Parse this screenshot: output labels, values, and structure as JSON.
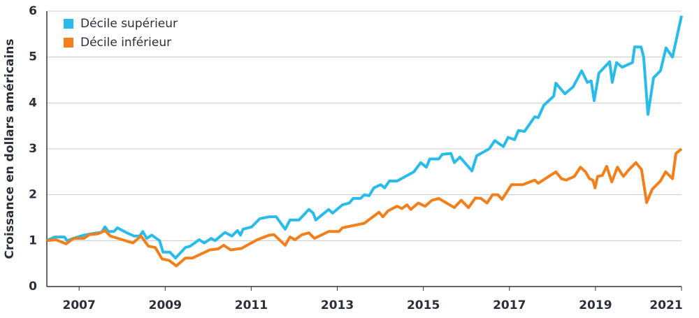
{
  "chart_data": {
    "type": "line",
    "y_label": "Croissance en dollars américains",
    "xlim": [
      2006.25,
      2021
    ],
    "xticks": [
      2007,
      2009,
      2011,
      2013,
      2015,
      2017,
      2019,
      2021
    ],
    "ylim": [
      0,
      6
    ],
    "yticks": [
      0,
      1,
      2,
      3,
      4,
      5,
      6
    ],
    "grid": true,
    "legend": "top-left",
    "series": [
      {
        "name": "Décile supérieur",
        "color": "#2bbbe9",
        "x": [
          2006.25,
          2006.43,
          2006.66,
          2006.72,
          2006.87,
          2007.11,
          2007.35,
          2007.52,
          2007.6,
          2007.68,
          2007.81,
          2007.89,
          2008.09,
          2008.28,
          2008.41,
          2008.48,
          2008.57,
          2008.69,
          2008.87,
          2008.95,
          2009.11,
          2009.24,
          2009.47,
          2009.58,
          2009.79,
          2009.91,
          2010.07,
          2010.16,
          2010.39,
          2010.55,
          2010.68,
          2010.75,
          2010.81,
          2011.01,
          2011.2,
          2011.42,
          2011.58,
          2011.79,
          2011.9,
          2012.11,
          2012.34,
          2012.44,
          2012.5,
          2012.8,
          2012.89,
          2013.12,
          2013.28,
          2013.37,
          2013.54,
          2013.63,
          2013.74,
          2013.85,
          2014.01,
          2014.1,
          2014.21,
          2014.39,
          2014.78,
          2014.94,
          2015.07,
          2015.15,
          2015.36,
          2015.44,
          2015.64,
          2015.72,
          2015.85,
          2016.13,
          2016.24,
          2016.53,
          2016.66,
          2016.86,
          2016.97,
          2017.12,
          2017.21,
          2017.35,
          2017.59,
          2017.67,
          2017.8,
          2018.03,
          2018.08,
          2018.29,
          2018.48,
          2018.68,
          2018.81,
          2018.9,
          2018.97,
          2019.08,
          2019.33,
          2019.39,
          2019.49,
          2019.62,
          2019.86,
          2019.91,
          2020.06,
          2020.12,
          2020.22,
          2020.35,
          2020.51,
          2020.64,
          2020.79,
          2021.0
        ],
        "values": [
          1.0,
          1.08,
          1.08,
          1.0,
          1.05,
          1.12,
          1.16,
          1.18,
          1.3,
          1.2,
          1.2,
          1.28,
          1.18,
          1.1,
          1.1,
          1.2,
          1.05,
          1.12,
          1.0,
          0.75,
          0.75,
          0.62,
          0.85,
          0.88,
          1.02,
          0.95,
          1.05,
          1.0,
          1.18,
          1.1,
          1.22,
          1.12,
          1.25,
          1.3,
          1.48,
          1.52,
          1.52,
          1.25,
          1.45,
          1.45,
          1.68,
          1.6,
          1.45,
          1.68,
          1.6,
          1.78,
          1.82,
          1.92,
          1.92,
          2.0,
          1.98,
          2.15,
          2.22,
          2.15,
          2.3,
          2.3,
          2.5,
          2.7,
          2.6,
          2.78,
          2.78,
          2.88,
          2.9,
          2.7,
          2.82,
          2.52,
          2.85,
          3.0,
          3.18,
          3.05,
          3.25,
          3.2,
          3.4,
          3.38,
          3.7,
          3.68,
          3.95,
          4.15,
          4.43,
          4.2,
          4.35,
          4.7,
          4.45,
          4.48,
          4.05,
          4.65,
          4.9,
          4.45,
          4.88,
          4.78,
          4.88,
          5.22,
          5.22,
          5.0,
          3.75,
          4.55,
          4.7,
          5.2,
          5.0,
          5.9
        ]
      },
      {
        "name": "Décile inférieur",
        "color": "#f07f1c",
        "x": [
          2006.25,
          2006.46,
          2006.7,
          2006.87,
          2007.11,
          2007.24,
          2007.44,
          2007.6,
          2007.73,
          2008.25,
          2008.44,
          2008.61,
          2008.77,
          2008.93,
          2009.09,
          2009.26,
          2009.47,
          2009.63,
          2010.04,
          2010.23,
          2010.36,
          2010.52,
          2010.77,
          2011.14,
          2011.42,
          2011.53,
          2011.79,
          2011.9,
          2012.02,
          2012.18,
          2012.34,
          2012.47,
          2012.8,
          2013.04,
          2013.12,
          2013.63,
          2013.97,
          2014.06,
          2014.18,
          2014.39,
          2014.5,
          2014.62,
          2014.71,
          2014.88,
          2015.04,
          2015.2,
          2015.36,
          2015.72,
          2015.88,
          2016.05,
          2016.21,
          2016.34,
          2016.48,
          2016.61,
          2016.73,
          2016.83,
          2017.05,
          2017.31,
          2017.59,
          2017.67,
          2018.0,
          2018.08,
          2018.21,
          2018.32,
          2018.51,
          2018.65,
          2018.77,
          2018.86,
          2018.94,
          2018.99,
          2019.05,
          2019.16,
          2019.26,
          2019.38,
          2019.51,
          2019.65,
          2019.78,
          2019.94,
          2020.07,
          2020.19,
          2020.32,
          2020.51,
          2020.63,
          2020.79,
          2020.87,
          2021.0
        ],
        "values": [
          1.0,
          1.02,
          0.93,
          1.05,
          1.05,
          1.13,
          1.15,
          1.22,
          1.1,
          0.95,
          1.1,
          0.88,
          0.85,
          0.6,
          0.57,
          0.45,
          0.62,
          0.62,
          0.8,
          0.82,
          0.9,
          0.8,
          0.83,
          1.02,
          1.12,
          1.13,
          0.9,
          1.08,
          1.02,
          1.13,
          1.17,
          1.05,
          1.2,
          1.2,
          1.28,
          1.38,
          1.62,
          1.52,
          1.65,
          1.75,
          1.7,
          1.78,
          1.68,
          1.82,
          1.75,
          1.88,
          1.92,
          1.72,
          1.88,
          1.72,
          1.93,
          1.92,
          1.82,
          2.0,
          2.0,
          1.9,
          2.22,
          2.22,
          2.32,
          2.25,
          2.45,
          2.5,
          2.35,
          2.32,
          2.4,
          2.6,
          2.5,
          2.35,
          2.32,
          2.15,
          2.4,
          2.42,
          2.62,
          2.28,
          2.6,
          2.4,
          2.55,
          2.7,
          2.55,
          1.83,
          2.12,
          2.3,
          2.5,
          2.35,
          2.9,
          3.0
        ]
      }
    ]
  }
}
